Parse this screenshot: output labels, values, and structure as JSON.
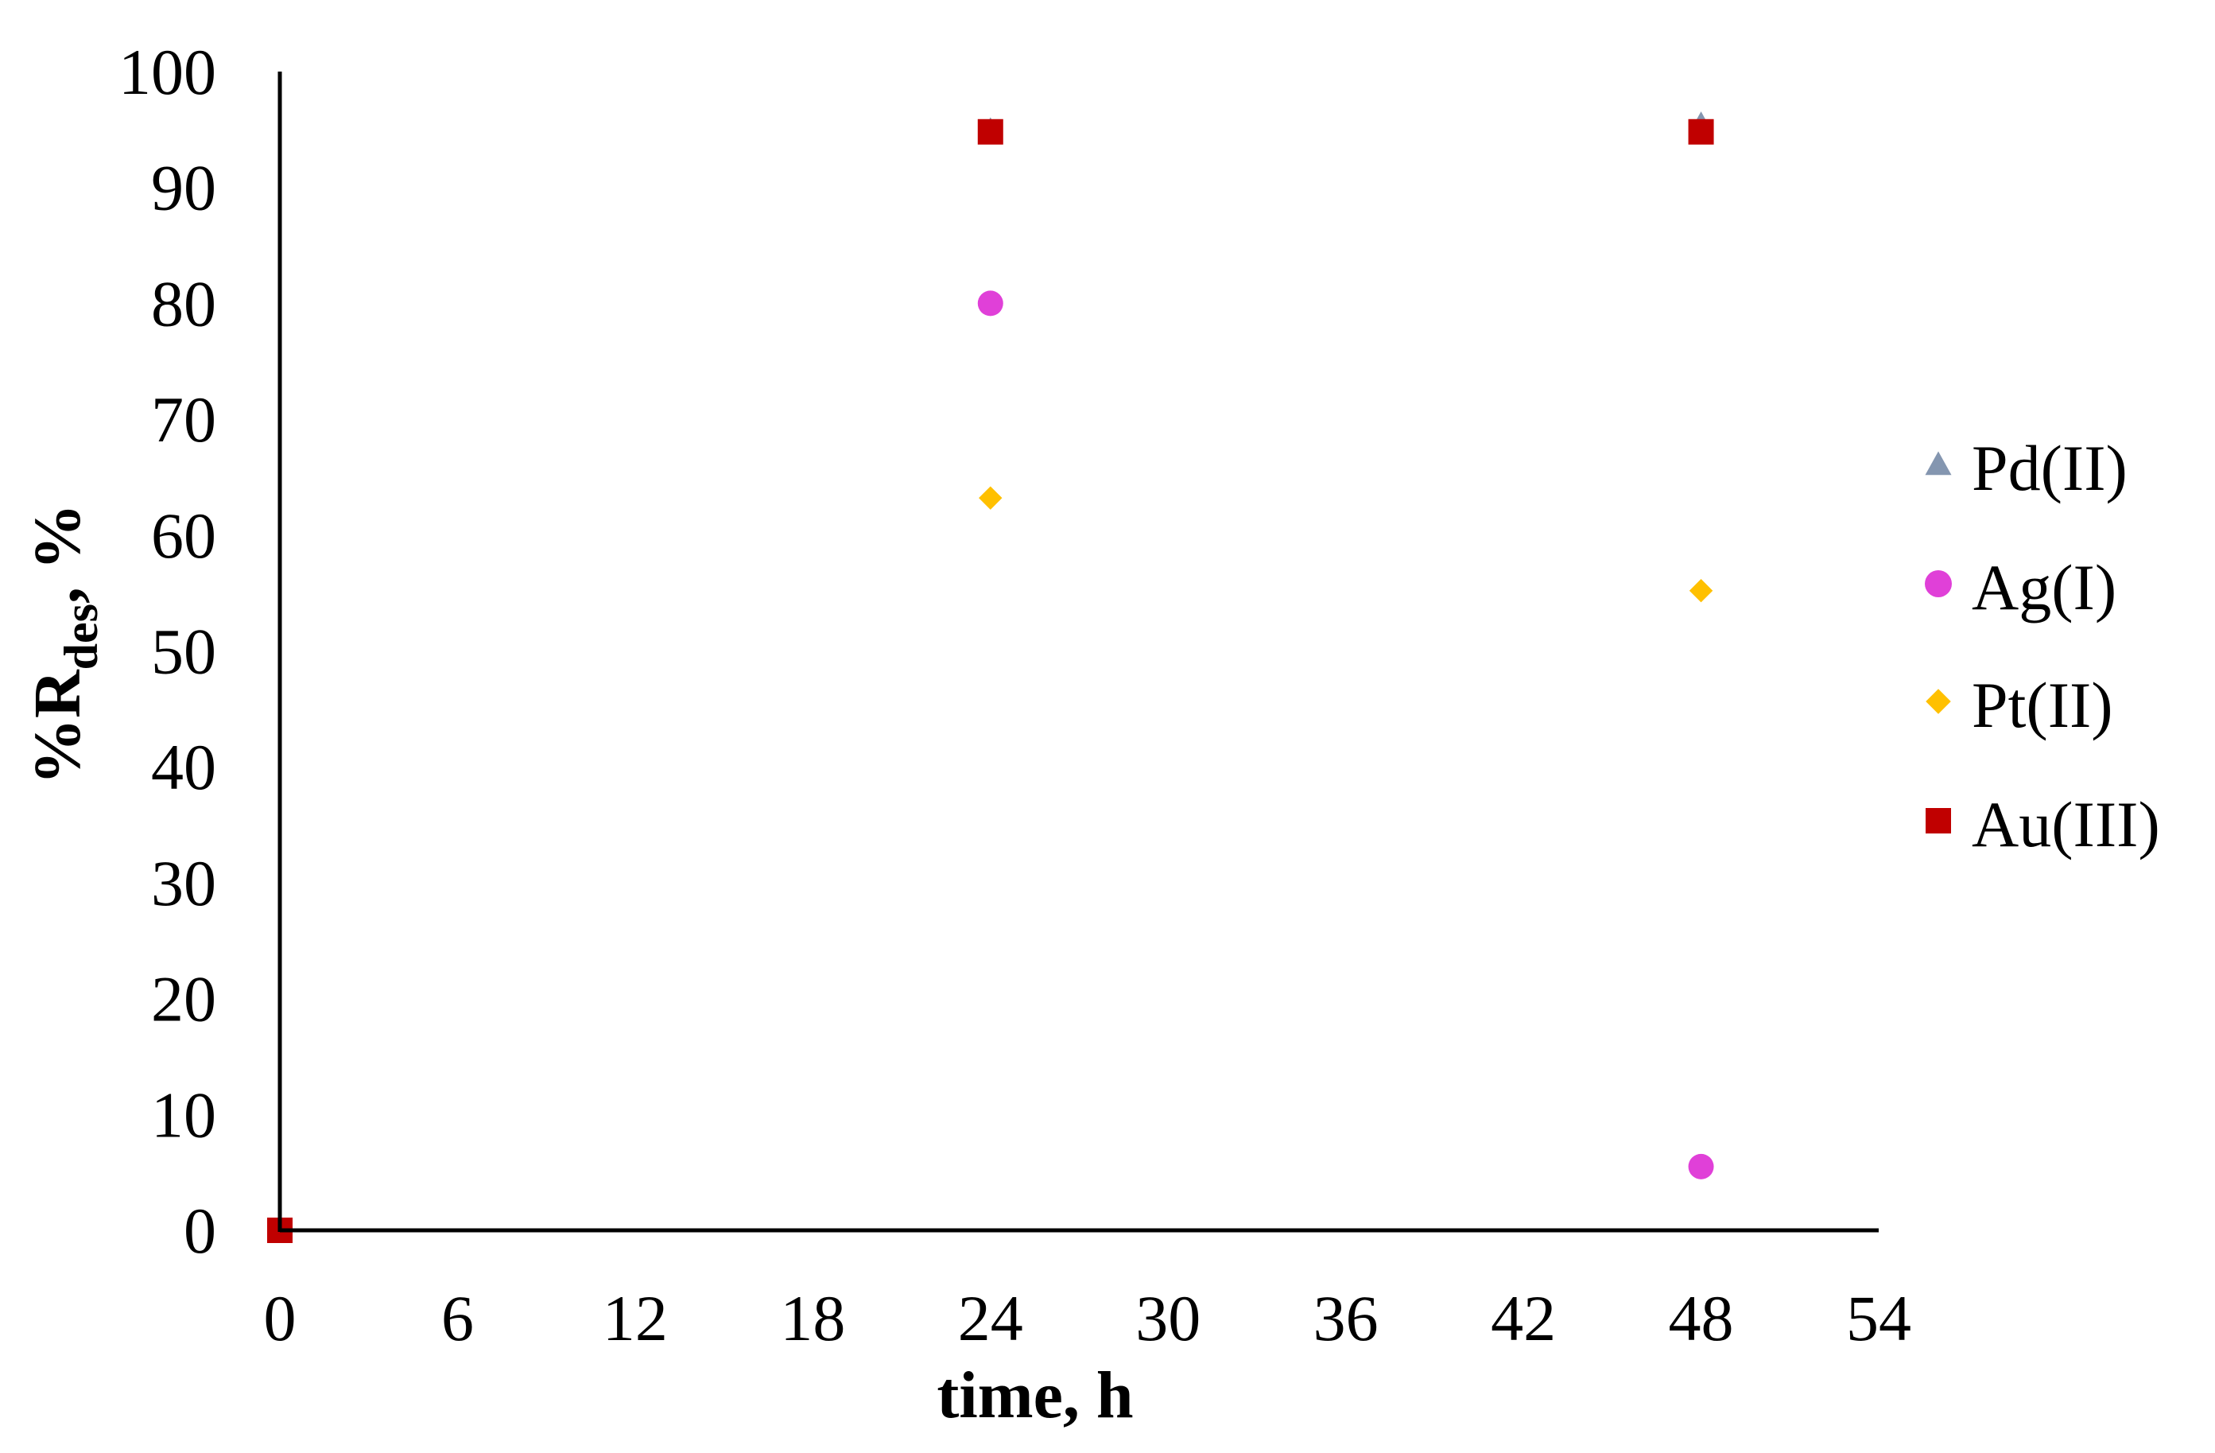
{
  "chart_data": {
    "type": "scatter",
    "title": "",
    "xlabel": "time, h",
    "ylabel": {
      "main": "%R",
      "subscript": "des",
      "suffix": ", %"
    },
    "xlim": [
      0,
      54
    ],
    "ylim": [
      0,
      100
    ],
    "xticks": [
      0,
      6,
      12,
      18,
      24,
      30,
      36,
      42,
      48,
      54
    ],
    "yticks": [
      0,
      10,
      20,
      30,
      40,
      50,
      60,
      70,
      80,
      90,
      100
    ],
    "grid": false,
    "legend_position": "right",
    "series": [
      {
        "name": "Pd(II)",
        "marker": "triangle",
        "color": "#8496b0",
        "x": [
          0,
          24,
          48
        ],
        "y": [
          0,
          95,
          95.5
        ]
      },
      {
        "name": "Ag(I)",
        "marker": "circle",
        "color": "#e040d8",
        "x": [
          0,
          24,
          48
        ],
        "y": [
          0,
          80,
          5.5
        ]
      },
      {
        "name": "Pt(II)",
        "marker": "diamond",
        "color": "#ffc000",
        "x": [
          0,
          24,
          48
        ],
        "y": [
          0,
          63.2,
          55.2
        ]
      },
      {
        "name": "Au(III)",
        "marker": "square",
        "color": "#c00000",
        "x": [
          0,
          24,
          48
        ],
        "y": [
          0,
          94.8,
          94.8
        ]
      }
    ]
  }
}
